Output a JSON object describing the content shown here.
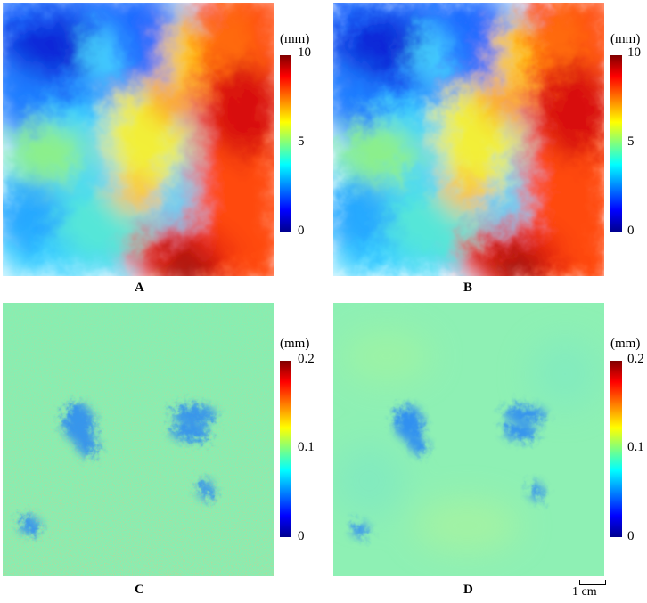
{
  "panels": [
    {
      "label": "A",
      "unit": "(mm)",
      "ticks": [
        "10",
        "5",
        "0"
      ],
      "scale_min": 0,
      "scale_max": 10
    },
    {
      "label": "B",
      "unit": "(mm)",
      "ticks": [
        "10",
        "5",
        "0"
      ],
      "scale_min": 0,
      "scale_max": 10
    },
    {
      "label": "C",
      "unit": "(mm)",
      "ticks": [
        "0.2",
        "0.1",
        "0"
      ],
      "scale_min": 0,
      "scale_max": 0.2
    },
    {
      "label": "D",
      "unit": "(mm)",
      "ticks": [
        "0.2",
        "0.1",
        "0"
      ],
      "scale_min": 0,
      "scale_max": 0.2
    }
  ],
  "scale_bar": {
    "label": "1 cm"
  },
  "colormap": {
    "low": "#00008f",
    "mid": "#7fff7f",
    "high": "#800000"
  }
}
